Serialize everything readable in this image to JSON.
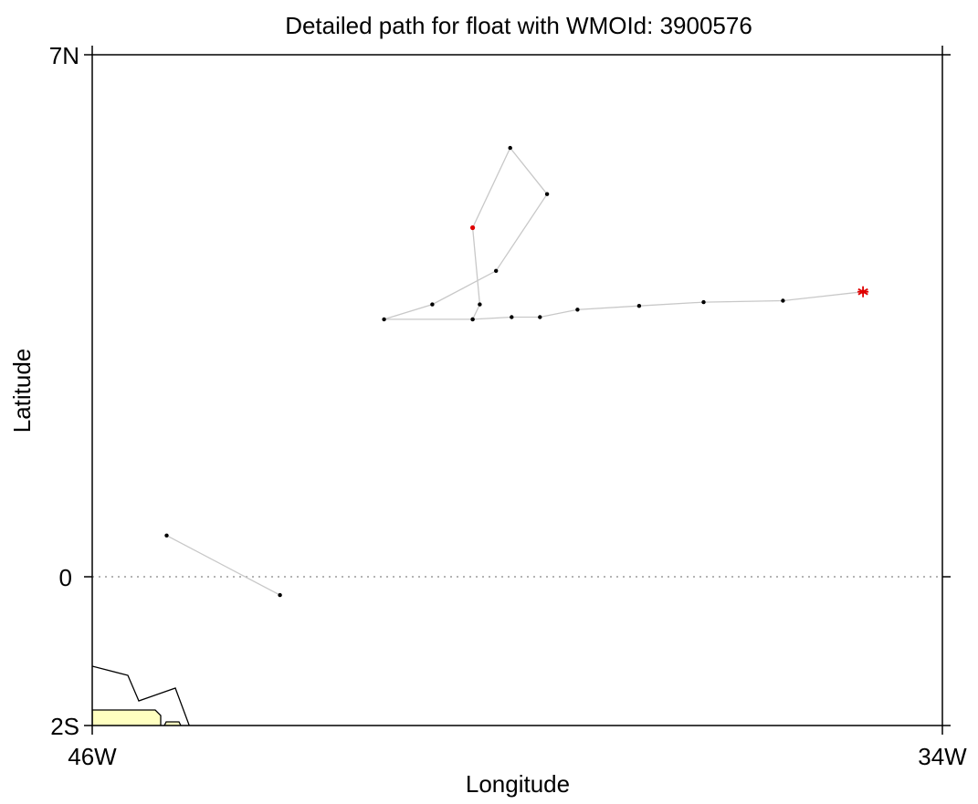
{
  "chart_data": {
    "type": "scatter",
    "title": "Detailed path for float with WMOId: 3900576",
    "xlabel": "Longitude",
    "ylabel": "Latitude",
    "xlim": [
      -46,
      -34
    ],
    "ylim": [
      -2,
      7
    ],
    "x_ticks": [
      {
        "value": -46,
        "label": "46W"
      },
      {
        "value": -34,
        "label": "34W"
      }
    ],
    "y_ticks": [
      {
        "value": 7,
        "label": "7N"
      },
      {
        "value": 0,
        "label": "0"
      },
      {
        "value": -2,
        "label": "2S"
      }
    ],
    "equator_line": {
      "value": 0,
      "style": "dotted"
    },
    "grid": false,
    "series": [
      {
        "segment": 1,
        "points": [
          {
            "x": -44.95,
            "y": 0.55
          },
          {
            "x": -43.35,
            "y": -0.25
          }
        ]
      },
      {
        "segment": 2,
        "points": [
          {
            "x": -40.63,
            "y": 4.68
          },
          {
            "x": -40.53,
            "y": 3.65
          },
          {
            "x": -40.63,
            "y": 3.45
          },
          {
            "x": -41.88,
            "y": 3.45
          },
          {
            "x": -41.2,
            "y": 3.65
          },
          {
            "x": -40.3,
            "y": 4.1
          },
          {
            "x": -39.58,
            "y": 5.13
          },
          {
            "x": -40.1,
            "y": 5.75
          },
          {
            "x": -40.63,
            "y": 4.68
          }
        ]
      },
      {
        "segment": 3,
        "points": [
          {
            "x": -40.63,
            "y": 3.45
          },
          {
            "x": -40.08,
            "y": 3.48
          },
          {
            "x": -39.68,
            "y": 3.48
          },
          {
            "x": -39.15,
            "y": 3.58
          },
          {
            "x": -38.28,
            "y": 3.63
          },
          {
            "x": -37.37,
            "y": 3.68
          },
          {
            "x": -36.25,
            "y": 3.7
          },
          {
            "x": -35.12,
            "y": 3.82
          }
        ]
      }
    ],
    "first_position": {
      "x": -40.63,
      "y": 4.68,
      "marker": "dot",
      "color": "#e00000"
    },
    "last_position": {
      "x": -35.12,
      "y": 3.82,
      "marker": "asterisk",
      "color": "#e00000"
    },
    "colors": {
      "path": "#c8c8c8",
      "points": "#000000",
      "highlight": "#e00000",
      "land_fill": "#ffffc0"
    }
  }
}
